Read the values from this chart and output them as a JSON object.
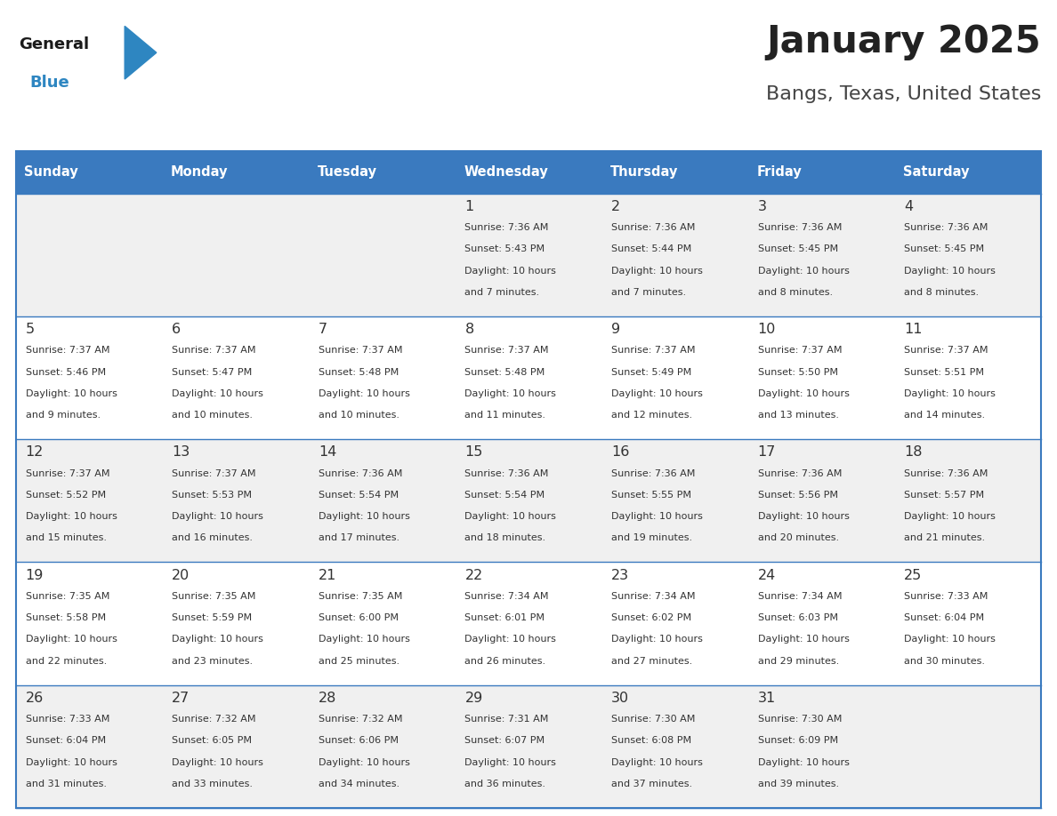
{
  "title": "January 2025",
  "subtitle": "Bangs, Texas, United States",
  "header_color": "#3a7abf",
  "header_text_color": "#ffffff",
  "cell_bg_color": "#f0f0f0",
  "cell_alt_bg_color": "#ffffff",
  "border_color": "#3a7abf",
  "day_names": [
    "Sunday",
    "Monday",
    "Tuesday",
    "Wednesday",
    "Thursday",
    "Friday",
    "Saturday"
  ],
  "title_color": "#222222",
  "subtitle_color": "#444444",
  "day_number_color": "#333333",
  "cell_text_color": "#333333",
  "calendar": [
    [
      {
        "day": "",
        "sunrise": "",
        "sunset": "",
        "daylight": ""
      },
      {
        "day": "",
        "sunrise": "",
        "sunset": "",
        "daylight": ""
      },
      {
        "day": "",
        "sunrise": "",
        "sunset": "",
        "daylight": ""
      },
      {
        "day": "1",
        "sunrise": "7:36 AM",
        "sunset": "5:43 PM",
        "daylight": "10 hours and 7 minutes."
      },
      {
        "day": "2",
        "sunrise": "7:36 AM",
        "sunset": "5:44 PM",
        "daylight": "10 hours and 7 minutes."
      },
      {
        "day": "3",
        "sunrise": "7:36 AM",
        "sunset": "5:45 PM",
        "daylight": "10 hours and 8 minutes."
      },
      {
        "day": "4",
        "sunrise": "7:36 AM",
        "sunset": "5:45 PM",
        "daylight": "10 hours and 8 minutes."
      }
    ],
    [
      {
        "day": "5",
        "sunrise": "7:37 AM",
        "sunset": "5:46 PM",
        "daylight": "10 hours and 9 minutes."
      },
      {
        "day": "6",
        "sunrise": "7:37 AM",
        "sunset": "5:47 PM",
        "daylight": "10 hours and 10 minutes."
      },
      {
        "day": "7",
        "sunrise": "7:37 AM",
        "sunset": "5:48 PM",
        "daylight": "10 hours and 10 minutes."
      },
      {
        "day": "8",
        "sunrise": "7:37 AM",
        "sunset": "5:48 PM",
        "daylight": "10 hours and 11 minutes."
      },
      {
        "day": "9",
        "sunrise": "7:37 AM",
        "sunset": "5:49 PM",
        "daylight": "10 hours and 12 minutes."
      },
      {
        "day": "10",
        "sunrise": "7:37 AM",
        "sunset": "5:50 PM",
        "daylight": "10 hours and 13 minutes."
      },
      {
        "day": "11",
        "sunrise": "7:37 AM",
        "sunset": "5:51 PM",
        "daylight": "10 hours and 14 minutes."
      }
    ],
    [
      {
        "day": "12",
        "sunrise": "7:37 AM",
        "sunset": "5:52 PM",
        "daylight": "10 hours and 15 minutes."
      },
      {
        "day": "13",
        "sunrise": "7:37 AM",
        "sunset": "5:53 PM",
        "daylight": "10 hours and 16 minutes."
      },
      {
        "day": "14",
        "sunrise": "7:36 AM",
        "sunset": "5:54 PM",
        "daylight": "10 hours and 17 minutes."
      },
      {
        "day": "15",
        "sunrise": "7:36 AM",
        "sunset": "5:54 PM",
        "daylight": "10 hours and 18 minutes."
      },
      {
        "day": "16",
        "sunrise": "7:36 AM",
        "sunset": "5:55 PM",
        "daylight": "10 hours and 19 minutes."
      },
      {
        "day": "17",
        "sunrise": "7:36 AM",
        "sunset": "5:56 PM",
        "daylight": "10 hours and 20 minutes."
      },
      {
        "day": "18",
        "sunrise": "7:36 AM",
        "sunset": "5:57 PM",
        "daylight": "10 hours and 21 minutes."
      }
    ],
    [
      {
        "day": "19",
        "sunrise": "7:35 AM",
        "sunset": "5:58 PM",
        "daylight": "10 hours and 22 minutes."
      },
      {
        "day": "20",
        "sunrise": "7:35 AM",
        "sunset": "5:59 PM",
        "daylight": "10 hours and 23 minutes."
      },
      {
        "day": "21",
        "sunrise": "7:35 AM",
        "sunset": "6:00 PM",
        "daylight": "10 hours and 25 minutes."
      },
      {
        "day": "22",
        "sunrise": "7:34 AM",
        "sunset": "6:01 PM",
        "daylight": "10 hours and 26 minutes."
      },
      {
        "day": "23",
        "sunrise": "7:34 AM",
        "sunset": "6:02 PM",
        "daylight": "10 hours and 27 minutes."
      },
      {
        "day": "24",
        "sunrise": "7:34 AM",
        "sunset": "6:03 PM",
        "daylight": "10 hours and 29 minutes."
      },
      {
        "day": "25",
        "sunrise": "7:33 AM",
        "sunset": "6:04 PM",
        "daylight": "10 hours and 30 minutes."
      }
    ],
    [
      {
        "day": "26",
        "sunrise": "7:33 AM",
        "sunset": "6:04 PM",
        "daylight": "10 hours and 31 minutes."
      },
      {
        "day": "27",
        "sunrise": "7:32 AM",
        "sunset": "6:05 PM",
        "daylight": "10 hours and 33 minutes."
      },
      {
        "day": "28",
        "sunrise": "7:32 AM",
        "sunset": "6:06 PM",
        "daylight": "10 hours and 34 minutes."
      },
      {
        "day": "29",
        "sunrise": "7:31 AM",
        "sunset": "6:07 PM",
        "daylight": "10 hours and 36 minutes."
      },
      {
        "day": "30",
        "sunrise": "7:30 AM",
        "sunset": "6:08 PM",
        "daylight": "10 hours and 37 minutes."
      },
      {
        "day": "31",
        "sunrise": "7:30 AM",
        "sunset": "6:09 PM",
        "daylight": "10 hours and 39 minutes."
      },
      {
        "day": "",
        "sunrise": "",
        "sunset": "",
        "daylight": ""
      }
    ]
  ],
  "logo_general_color": "#1a1a1a",
  "logo_blue_color": "#2e86c1"
}
